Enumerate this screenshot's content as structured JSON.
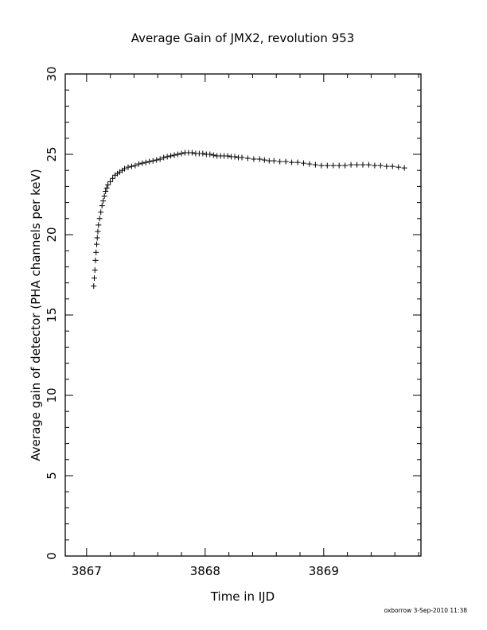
{
  "chart_data": {
    "type": "scatter",
    "title": "Average Gain of JMX2, revolution 953",
    "xlabel": "Time in IJD",
    "ylabel": "Average gain of detector (PHA channels per keV)",
    "footer": "oxborrow   3-Sep-2010 11:38",
    "xlim": [
      3866.82,
      3869.82
    ],
    "ylim": [
      0,
      30
    ],
    "x_ticks": [
      3867,
      3868,
      3869
    ],
    "x_tick_labels": [
      "3867",
      "3868",
      "3869"
    ],
    "y_ticks": [
      0,
      5,
      10,
      15,
      20,
      25,
      30
    ],
    "y_tick_labels": [
      "0",
      "5",
      "10",
      "15",
      "20",
      "25",
      "30"
    ],
    "grid": false,
    "marker": "+",
    "series": [
      {
        "points": [
          [
            3867.06,
            16.8
          ],
          [
            3867.065,
            17.3
          ],
          [
            3867.07,
            17.8
          ],
          [
            3867.075,
            18.4
          ],
          [
            3867.08,
            18.9
          ],
          [
            3867.085,
            19.4
          ],
          [
            3867.09,
            19.8
          ],
          [
            3867.095,
            20.2
          ],
          [
            3867.1,
            20.6
          ],
          [
            3867.11,
            21.0
          ],
          [
            3867.12,
            21.4
          ],
          [
            3867.13,
            21.8
          ],
          [
            3867.14,
            22.1
          ],
          [
            3867.15,
            22.4
          ],
          [
            3867.16,
            22.7
          ],
          [
            3867.17,
            22.9
          ],
          [
            3867.18,
            23.1
          ],
          [
            3867.2,
            23.3
          ],
          [
            3867.22,
            23.5
          ],
          [
            3867.24,
            23.7
          ],
          [
            3867.26,
            23.8
          ],
          [
            3867.28,
            23.9
          ],
          [
            3867.3,
            24.0
          ],
          [
            3867.32,
            24.1
          ],
          [
            3867.35,
            24.2
          ],
          [
            3867.38,
            24.25
          ],
          [
            3867.41,
            24.3
          ],
          [
            3867.44,
            24.4
          ],
          [
            3867.47,
            24.45
          ],
          [
            3867.5,
            24.5
          ],
          [
            3867.53,
            24.55
          ],
          [
            3867.56,
            24.6
          ],
          [
            3867.59,
            24.65
          ],
          [
            3867.62,
            24.7
          ],
          [
            3867.65,
            24.8
          ],
          [
            3867.68,
            24.85
          ],
          [
            3867.71,
            24.9
          ],
          [
            3867.74,
            24.95
          ],
          [
            3867.77,
            25.0
          ],
          [
            3867.8,
            25.05
          ],
          [
            3867.83,
            25.1
          ],
          [
            3867.86,
            25.1
          ],
          [
            3867.89,
            25.1
          ],
          [
            3867.92,
            25.05
          ],
          [
            3867.95,
            25.05
          ],
          [
            3867.98,
            25.05
          ],
          [
            3868.01,
            25.0
          ],
          [
            3868.04,
            25.0
          ],
          [
            3868.07,
            24.95
          ],
          [
            3868.1,
            24.9
          ],
          [
            3868.13,
            24.9
          ],
          [
            3868.16,
            24.9
          ],
          [
            3868.19,
            24.9
          ],
          [
            3868.22,
            24.85
          ],
          [
            3868.25,
            24.85
          ],
          [
            3868.28,
            24.8
          ],
          [
            3868.31,
            24.8
          ],
          [
            3868.36,
            24.75
          ],
          [
            3868.41,
            24.7
          ],
          [
            3868.46,
            24.7
          ],
          [
            3868.5,
            24.65
          ],
          [
            3868.54,
            24.6
          ],
          [
            3868.58,
            24.6
          ],
          [
            3868.63,
            24.55
          ],
          [
            3868.68,
            24.55
          ],
          [
            3868.73,
            24.5
          ],
          [
            3868.78,
            24.5
          ],
          [
            3868.83,
            24.45
          ],
          [
            3868.88,
            24.4
          ],
          [
            3868.93,
            24.35
          ],
          [
            3868.98,
            24.3
          ],
          [
            3869.03,
            24.3
          ],
          [
            3869.08,
            24.3
          ],
          [
            3869.13,
            24.3
          ],
          [
            3869.18,
            24.3
          ],
          [
            3869.23,
            24.35
          ],
          [
            3869.28,
            24.35
          ],
          [
            3869.33,
            24.35
          ],
          [
            3869.38,
            24.35
          ],
          [
            3869.43,
            24.3
          ],
          [
            3869.48,
            24.3
          ],
          [
            3869.53,
            24.25
          ],
          [
            3869.58,
            24.25
          ],
          [
            3869.63,
            24.2
          ],
          [
            3869.68,
            24.15
          ]
        ]
      }
    ]
  }
}
